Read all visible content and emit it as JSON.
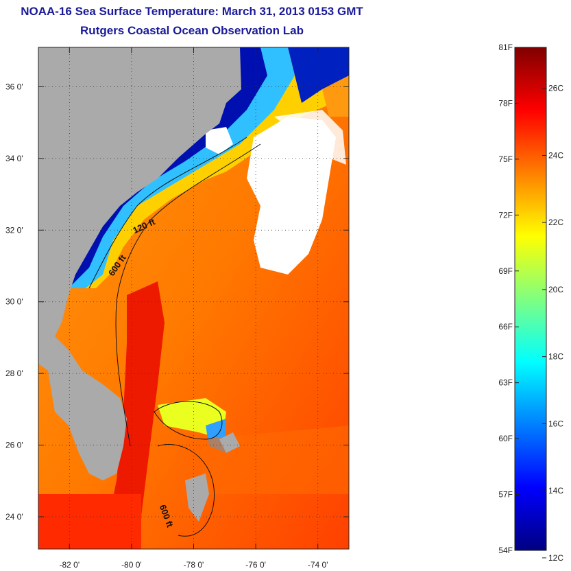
{
  "title": {
    "line1": "NOAA-16 Sea Surface Temperature:  March 31, 2013 0153 GMT",
    "line2": "Rutgers Coastal Ocean Observation Lab"
  },
  "map": {
    "lat_range": [
      23.1,
      37.1
    ],
    "lon_range": [
      -83.0,
      -73.0
    ],
    "lat_ticks": [
      {
        "value": 24,
        "label": "24 0'"
      },
      {
        "value": 26,
        "label": "26 0'"
      },
      {
        "value": 28,
        "label": "28 0'"
      },
      {
        "value": 30,
        "label": "30 0'"
      },
      {
        "value": 32,
        "label": "32 0'"
      },
      {
        "value": 34,
        "label": "34 0'"
      },
      {
        "value": 36,
        "label": "36 0'"
      }
    ],
    "lon_ticks": [
      {
        "value": -82,
        "label": "-82 0'"
      },
      {
        "value": -80,
        "label": "-80 0'"
      },
      {
        "value": -78,
        "label": "-78 0'"
      },
      {
        "value": -76,
        "label": "-76 0'"
      },
      {
        "value": -74,
        "label": "-74 0'"
      }
    ],
    "grid": "dotted",
    "land_color": "#aaaaaa",
    "cloud_color": "#ffffff",
    "contour_labels": [
      {
        "text": "120 ft",
        "lon": -79.9,
        "lat": 31.9
      },
      {
        "text": "600 ft",
        "lon": -80.6,
        "lat": 30.7
      },
      {
        "text": "600 ft",
        "lon": -79.1,
        "lat": 24.3
      }
    ]
  },
  "colorbar": {
    "range_f": [
      54,
      81
    ],
    "f_labels": [
      "81F",
      "78F",
      "75F",
      "72F",
      "69F",
      "66F",
      "63F",
      "60F",
      "57F",
      "54F"
    ],
    "c_labels": [
      "26C",
      "24C",
      "22C",
      "20C",
      "18C",
      "16C",
      "14C",
      "12C"
    ],
    "colors": [
      "#000080",
      "#0000ff",
      "#0080ff",
      "#00ffff",
      "#80ff80",
      "#ffff00",
      "#ff8000",
      "#ff0000",
      "#800000"
    ]
  }
}
